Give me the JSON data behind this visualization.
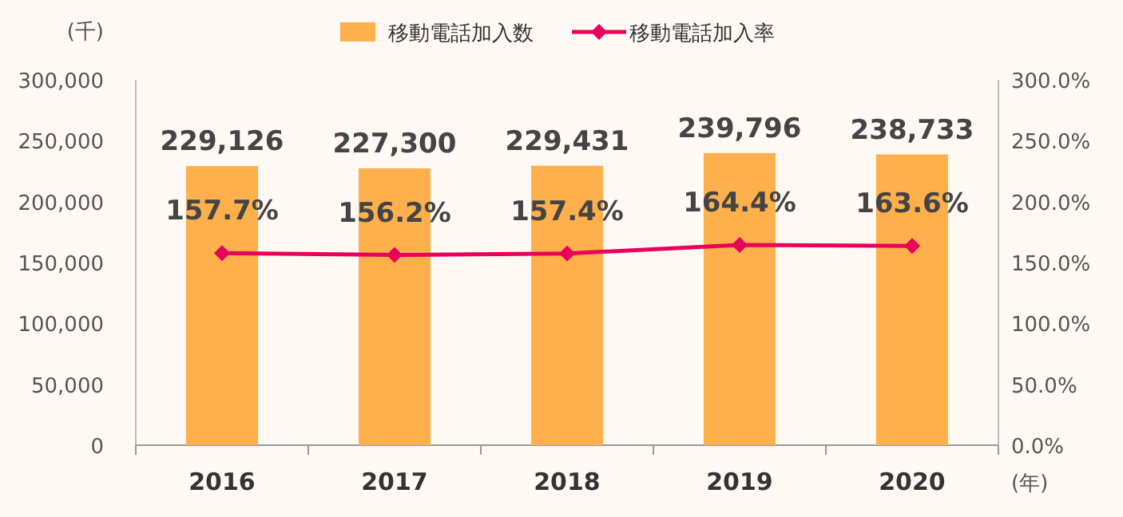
{
  "chart_data": {
    "type": "bar",
    "categories": [
      "2016",
      "2017",
      "2018",
      "2019",
      "2020"
    ],
    "ylabel": "(千)",
    "xlabel": "(年)",
    "legend": "top",
    "grid": false,
    "series": [
      {
        "name": "移動電話加入数",
        "color": "#ffb04c",
        "values": [
          229126,
          227300,
          229431,
          239796,
          238733
        ],
        "value_labels": [
          "229,126",
          "227,300",
          "229,431",
          "239,796",
          "238,733"
        ]
      },
      {
        "name": "移動電話加入率",
        "type": "line",
        "axis": "y2",
        "color": "#e8005a",
        "marker": "diamond",
        "line_style": "solid",
        "values": [
          157.7,
          156.2,
          157.4,
          164.4,
          163.6
        ],
        "value_labels": [
          "157.7%",
          "156.2%",
          "157.4%",
          "164.4%",
          "163.6%"
        ]
      }
    ],
    "ylim": [
      0,
      300000
    ],
    "yticks": [
      {
        "value": 0,
        "label": "0"
      },
      {
        "value": 50000,
        "label": "50,000"
      },
      {
        "value": 100000,
        "label": "100,000"
      },
      {
        "value": 150000,
        "label": "150,000"
      },
      {
        "value": 200000,
        "label": "200,000"
      },
      {
        "value": 250000,
        "label": "250,000"
      },
      {
        "value": 300000,
        "label": "300,000"
      }
    ],
    "y2lim": [
      0,
      300
    ],
    "y2ticks": [
      {
        "value": 0,
        "label": "0.0%"
      },
      {
        "value": 50,
        "label": "50.0%"
      },
      {
        "value": 100,
        "label": "100.0%"
      },
      {
        "value": 150,
        "label": "150.0%"
      },
      {
        "value": 200,
        "label": "200.0%"
      },
      {
        "value": 250,
        "label": "250.0%"
      },
      {
        "value": 300,
        "label": "300.0%"
      }
    ]
  }
}
